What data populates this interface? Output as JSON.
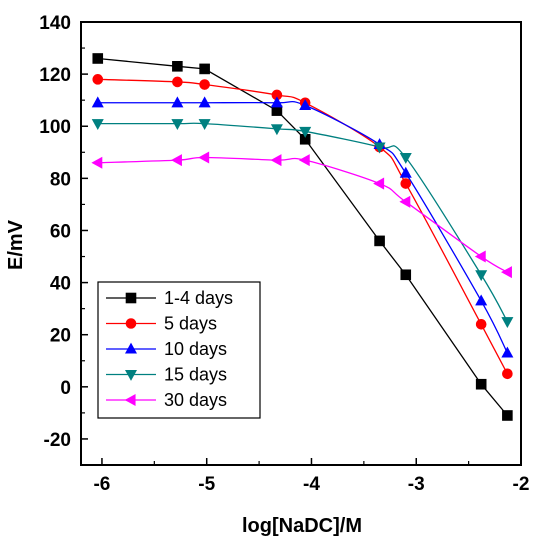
{
  "chart_data": {
    "type": "line",
    "title": "",
    "xlabel": "log[NaDC]/M",
    "ylabel": "E/mV",
    "xlim": [
      -6.2,
      -2.0
    ],
    "ylim": [
      -30,
      140
    ],
    "xticks": [
      -6,
      -5,
      -4,
      -3,
      -2
    ],
    "xtick_labels": [
      "-6",
      "-5",
      "-4",
      "-3",
      "-2"
    ],
    "yticks": [
      -20,
      0,
      20,
      40,
      60,
      80,
      100,
      120,
      140
    ],
    "ytick_labels": [
      "-20",
      "0",
      "20",
      "40",
      "60",
      "80",
      "100",
      "120",
      "140"
    ],
    "grid": false,
    "legend_position": "bottom-left",
    "series": [
      {
        "name": "1-4 days",
        "color": "#000000",
        "marker": "square",
        "x": [
          -6.04,
          -5.28,
          -5.02,
          -4.33,
          -4.06,
          -3.35,
          -3.1,
          -2.38,
          -2.13
        ],
        "y": [
          126,
          123,
          122,
          106,
          95,
          56,
          43,
          1,
          -11
        ]
      },
      {
        "name": "5 days",
        "color": "#ff0000",
        "marker": "circle",
        "x": [
          -6.04,
          -5.28,
          -5.02,
          -4.33,
          -4.06,
          -3.35,
          -3.1,
          -2.38,
          -2.13
        ],
        "y": [
          118,
          117,
          116,
          112,
          109,
          92,
          78,
          24,
          5
        ]
      },
      {
        "name": "10 days",
        "color": "#0000ff",
        "marker": "triangle-up",
        "x": [
          -6.04,
          -5.28,
          -5.02,
          -4.33,
          -4.06,
          -3.35,
          -3.1,
          -2.38,
          -2.13
        ],
        "y": [
          109,
          109,
          109,
          109,
          108,
          93,
          82,
          33,
          13
        ]
      },
      {
        "name": "15 days",
        "color": "#008080",
        "marker": "triangle-down",
        "x": [
          -6.04,
          -5.28,
          -5.02,
          -4.33,
          -4.06,
          -3.35,
          -3.1,
          -2.38,
          -2.13
        ],
        "y": [
          101,
          101,
          101,
          99,
          98,
          92,
          88,
          43,
          25
        ]
      },
      {
        "name": "30 days",
        "color": "#ff00ff",
        "marker": "triangle-left",
        "x": [
          -6.04,
          -5.28,
          -5.02,
          -4.33,
          -4.06,
          -3.35,
          -3.1,
          -2.38,
          -2.13
        ],
        "y": [
          86,
          87,
          88,
          87,
          87,
          78,
          71,
          50,
          44
        ]
      }
    ]
  }
}
